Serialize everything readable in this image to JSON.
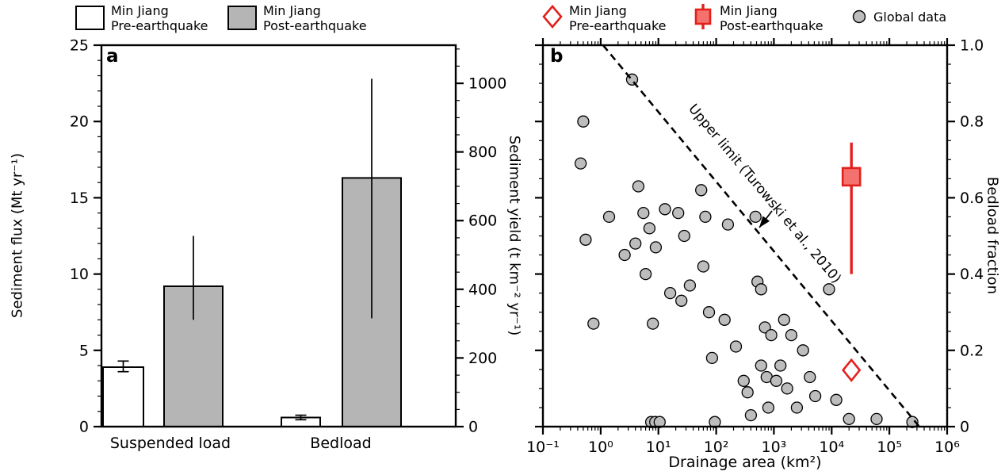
{
  "figure": {
    "panel_a": {
      "label": "a",
      "legend": [
        {
          "label": "Min Jiang\nPre-earthquake",
          "swatch": "white-bar"
        },
        {
          "label": "Min Jiang\nPost-earthquake",
          "swatch": "gray-bar"
        }
      ],
      "ylabel_left": "Sediment flux (Mt yr⁻¹)",
      "ylabel_right": "Sediment yield (t km⁻² yr⁻¹)",
      "categories": [
        "Suspended load",
        "Bedload"
      ]
    },
    "panel_b": {
      "label": "b",
      "legend": [
        {
          "label": "Min Jiang\nPre-earthquake",
          "marker": "open-diamond"
        },
        {
          "label": "Min Jiang\nPost-earthquake",
          "marker": "filled-square-with-errorbar"
        },
        {
          "label": "Global data",
          "marker": "gray-circle"
        }
      ],
      "xlabel": "Drainage area (km²)",
      "ylabel_right": "Bedload fraction",
      "annotation": "Upper limit (Turowski et al., 2010)"
    }
  },
  "colors": {
    "red_stroke": "#e2211c",
    "red_fill": "#f4716e",
    "gray_point_fill": "#bdbdbd",
    "bar_gray": "#b5b5b5",
    "bar_white": "#ffffff",
    "black": "#000000"
  },
  "chart_data": [
    {
      "id": "panel_a",
      "type": "bar",
      "title": "",
      "categories": [
        "Suspended load",
        "Bedload"
      ],
      "series": [
        {
          "name": "Min Jiang Pre-earthquake",
          "fill": "#ffffff",
          "values": [
            3.9,
            0.6
          ],
          "error_ranges": [
            [
              3.6,
              4.3
            ],
            [
              0.45,
              0.75
            ]
          ]
        },
        {
          "name": "Min Jiang Post-earthquake",
          "fill": "#b5b5b5",
          "values": [
            9.2,
            16.3
          ],
          "error_ranges": [
            [
              7.0,
              12.5
            ],
            [
              7.1,
              22.8
            ]
          ]
        }
      ],
      "ylabel_left": "Sediment flux (Mt yr⁻¹)",
      "ylim_left": [
        0,
        25
      ],
      "yticks_left": [
        0,
        5,
        10,
        15,
        20,
        25
      ],
      "minor_step_left": 1,
      "ylabel_right": "Sediment yield (t km⁻² yr⁻¹)",
      "ylim_right": [
        0,
        1111
      ],
      "yticks_right": [
        0,
        200,
        400,
        600,
        800,
        1000
      ],
      "minor_step_right": 50,
      "grid": false,
      "legend_position": "top"
    },
    {
      "id": "panel_b",
      "type": "scatter",
      "title": "",
      "xlabel": "Drainage area (km²)",
      "xscale": "log",
      "xlim": [
        0.1,
        1000000
      ],
      "xticks": [
        {
          "v": 0.1,
          "label": "10⁻¹"
        },
        {
          "v": 1,
          "label": "10⁰"
        },
        {
          "v": 10,
          "label": "10¹"
        },
        {
          "v": 100,
          "label": "10²"
        },
        {
          "v": 1000,
          "label": "10³"
        },
        {
          "v": 10000,
          "label": "10⁴"
        },
        {
          "v": 100000,
          "label": "10⁵"
        },
        {
          "v": 1000000,
          "label": "10⁶"
        }
      ],
      "ylabel": "Bedload fraction",
      "ylim": [
        0,
        1
      ],
      "yticks": [
        {
          "v": 0,
          "label": "0"
        },
        {
          "v": 0.2,
          "label": "0.2"
        },
        {
          "v": 0.4,
          "label": "0.4"
        },
        {
          "v": 0.6,
          "label": "0.6"
        },
        {
          "v": 0.8,
          "label": "0.8"
        },
        {
          "v": 1.0,
          "label": "1.0"
        }
      ],
      "minor_y_step": 0.05,
      "grid": false,
      "legend_position": "top",
      "upper_limit_line": {
        "style": "dashed",
        "color": "#000000",
        "points": [
          [
            1.1,
            1.0
          ],
          [
            330000,
            0.0
          ]
        ],
        "label": "Upper limit (Turowski et al., 2010)"
      },
      "min_jiang_post": {
        "marker": "filled-square",
        "stroke": "#e2211c",
        "fill": "#f4716e",
        "x": 22000,
        "y": 0.655,
        "y_error": [
          0.4,
          0.745
        ]
      },
      "min_jiang_pre": {
        "marker": "open-diamond",
        "stroke": "#e2211c",
        "fill": "#ffffff",
        "x": 22000,
        "y": 0.148
      },
      "global_data": {
        "marker": "circle",
        "fill": "#bdbdbd",
        "stroke": "#000000",
        "points": [
          [
            0.5,
            0.8
          ],
          [
            0.45,
            0.69
          ],
          [
            3.5,
            0.91
          ],
          [
            0.55,
            0.49
          ],
          [
            0.75,
            0.27
          ],
          [
            1.4,
            0.55
          ],
          [
            2.6,
            0.45
          ],
          [
            4.0,
            0.48
          ],
          [
            4.5,
            0.63
          ],
          [
            5.5,
            0.56
          ],
          [
            6,
            0.4
          ],
          [
            7,
            0.52
          ],
          [
            8,
            0.27
          ],
          [
            9,
            0.47
          ],
          [
            7.5,
            0.012
          ],
          [
            8.8,
            0.012
          ],
          [
            10.5,
            0.012
          ],
          [
            13,
            0.57
          ],
          [
            16,
            0.35
          ],
          [
            22,
            0.56
          ],
          [
            25,
            0.33
          ],
          [
            28,
            0.5
          ],
          [
            35,
            0.37
          ],
          [
            55,
            0.62
          ],
          [
            60,
            0.42
          ],
          [
            65,
            0.55
          ],
          [
            75,
            0.3
          ],
          [
            85,
            0.18
          ],
          [
            95,
            0.012
          ],
          [
            140,
            0.28
          ],
          [
            160,
            0.53
          ],
          [
            220,
            0.21
          ],
          [
            300,
            0.12
          ],
          [
            350,
            0.09
          ],
          [
            400,
            0.03
          ],
          [
            480,
            0.55
          ],
          [
            520,
            0.38
          ],
          [
            600,
            0.36
          ],
          [
            600,
            0.16
          ],
          [
            700,
            0.26
          ],
          [
            750,
            0.13
          ],
          [
            800,
            0.05
          ],
          [
            900,
            0.24
          ],
          [
            1100,
            0.12
          ],
          [
            1300,
            0.16
          ],
          [
            1500,
            0.28
          ],
          [
            1700,
            0.1
          ],
          [
            2000,
            0.24
          ],
          [
            2500,
            0.05
          ],
          [
            3200,
            0.2
          ],
          [
            4200,
            0.13
          ],
          [
            5200,
            0.08
          ],
          [
            9000,
            0.36
          ],
          [
            12000,
            0.07
          ],
          [
            20000,
            0.02
          ],
          [
            60000,
            0.02
          ],
          [
            250000,
            0.012
          ]
        ]
      }
    }
  ]
}
